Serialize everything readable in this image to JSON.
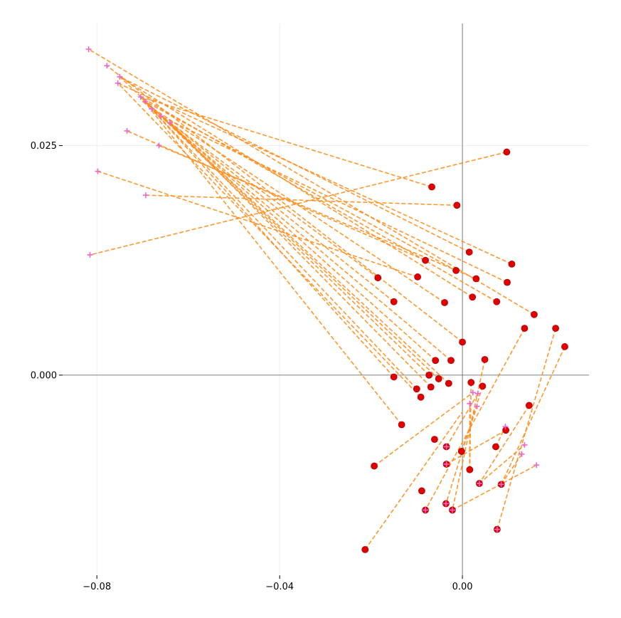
{
  "chart_data": {
    "type": "scatter",
    "title": "",
    "xlabel": "",
    "ylabel": "",
    "xlim": [
      -0.0875,
      0.0277
    ],
    "ylim": [
      -0.0218,
      0.0383
    ],
    "grid": true,
    "xticks": [
      -0.08,
      -0.04,
      0.0
    ],
    "xtick_labels": [
      "−0.08",
      "−0.04",
      "0.00"
    ],
    "yticks": [
      0.0,
      0.025
    ],
    "ytick_labels": [
      "0.000",
      "0.025"
    ],
    "colors": {
      "point": "#e00000",
      "point_edge": "#b00000",
      "target": "#ee66cc",
      "line": "#ff8c1a",
      "grid": "#eeeeee",
      "axis": "#555555"
    },
    "series": [
      {
        "marker": "circle",
        "points": [
          [
            0.0097,
            0.0243
          ],
          [
            -0.0067,
            0.0205
          ],
          [
            -0.0012,
            0.0185
          ],
          [
            0.0015,
            0.0134
          ],
          [
            0.0108,
            0.0121
          ],
          [
            -0.0081,
            0.0125
          ],
          [
            -0.0014,
            0.0114
          ],
          [
            -0.0098,
            0.0107
          ],
          [
            -0.0185,
            0.0106
          ],
          [
            0.003,
            0.0105
          ],
          [
            0.0098,
            0.0101
          ],
          [
            -0.015,
            0.008
          ],
          [
            -0.0039,
            0.0079
          ],
          [
            0.0022,
            0.0085
          ],
          [
            0.0075,
            0.008
          ],
          [
            0.0157,
            0.0066
          ],
          [
            0.0136,
            0.0051
          ],
          [
            0.0204,
            0.0051
          ],
          [
            0.0224,
            0.0031
          ],
          [
            0.0,
            0.0036
          ],
          [
            0.0049,
            0.0017
          ],
          [
            -0.0059,
            0.0016
          ],
          [
            -0.0025,
            0.0016
          ],
          [
            -0.015,
            -0.0002
          ],
          [
            -0.0073,
            0.0
          ],
          [
            -0.0052,
            -0.0004
          ],
          [
            0.0019,
            -0.0008
          ],
          [
            -0.003,
            -0.0009
          ],
          [
            0.0044,
            -0.0012
          ],
          [
            -0.0069,
            -0.0013
          ],
          [
            -0.01,
            -0.0015
          ],
          [
            -0.0091,
            -0.0024
          ],
          [
            0.0146,
            -0.0033
          ],
          [
            -0.0133,
            -0.0054
          ],
          [
            0.0095,
            -0.006
          ],
          [
            -0.0061,
            -0.007
          ],
          [
            -0.0035,
            -0.0078
          ],
          [
            0.0073,
            -0.0078
          ],
          [
            -0.0002,
            -0.0083
          ],
          [
            -0.0035,
            -0.0097
          ],
          [
            -0.0193,
            -0.0099
          ],
          [
            0.0016,
            -0.0103
          ],
          [
            0.0037,
            -0.0118
          ],
          [
            0.0085,
            -0.0119
          ],
          [
            -0.0089,
            -0.0126
          ],
          [
            -0.0036,
            -0.014
          ],
          [
            -0.0081,
            -0.0147
          ],
          [
            -0.0022,
            -0.0147
          ],
          [
            0.0076,
            -0.0168
          ],
          [
            -0.0213,
            -0.019
          ]
        ]
      },
      {
        "marker": "plus",
        "points": [
          [
            -0.0818,
            0.0355
          ],
          [
            -0.0778,
            0.0337
          ],
          [
            -0.075,
            0.0325
          ],
          [
            -0.0754,
            0.0318
          ],
          [
            -0.0704,
            0.0303
          ],
          [
            -0.0694,
            0.0298
          ],
          [
            -0.068,
            0.029
          ],
          [
            -0.066,
            0.0282
          ],
          [
            -0.064,
            0.0275
          ],
          [
            -0.0734,
            0.0266
          ],
          [
            -0.0664,
            0.025
          ],
          [
            -0.0798,
            0.0222
          ],
          [
            -0.0693,
            0.0196
          ],
          [
            -0.0815,
            0.0131
          ],
          [
            0.0023,
            -0.0019
          ],
          [
            0.0034,
            -0.002
          ],
          [
            0.0032,
            -0.0034
          ],
          [
            0.0016,
            -0.0031
          ],
          [
            0.0094,
            -0.0056
          ],
          [
            0.0136,
            -0.0076
          ],
          [
            0.013,
            -0.0086
          ],
          [
            0.0162,
            -0.0098
          ],
          [
            -0.0035,
            -0.0078
          ],
          [
            -0.0035,
            -0.0097
          ],
          [
            0.0037,
            -0.0118
          ],
          [
            0.0085,
            -0.0119
          ],
          [
            -0.0081,
            -0.0147
          ],
          [
            -0.0036,
            -0.014
          ],
          [
            -0.0022,
            -0.0147
          ],
          [
            0.0076,
            -0.0168
          ]
        ]
      }
    ],
    "links": [
      [
        [
          -0.0067,
          0.0205
        ],
        [
          -0.0704,
          0.0303
        ]
      ],
      [
        [
          -0.0012,
          0.0185
        ],
        [
          -0.0693,
          0.0196
        ]
      ],
      [
        [
          0.0015,
          0.0134
        ],
        [
          -0.075,
          0.0325
        ]
      ],
      [
        [
          0.0108,
          0.0121
        ],
        [
          -0.0754,
          0.0318
        ]
      ],
      [
        [
          -0.0081,
          0.0125
        ],
        [
          -0.0734,
          0.0266
        ]
      ],
      [
        [
          -0.0014,
          0.0114
        ],
        [
          -0.0694,
          0.0298
        ]
      ],
      [
        [
          -0.0098,
          0.0107
        ],
        [
          -0.0798,
          0.0222
        ]
      ],
      [
        [
          -0.0185,
          0.0106
        ],
        [
          -0.068,
          0.029
        ]
      ],
      [
        [
          0.003,
          0.0105
        ],
        [
          -0.0664,
          0.025
        ]
      ],
      [
        [
          0.0098,
          0.0101
        ],
        [
          -0.066,
          0.0282
        ]
      ],
      [
        [
          -0.015,
          0.008
        ],
        [
          -0.064,
          0.0275
        ]
      ],
      [
        [
          -0.0039,
          0.0079
        ],
        [
          -0.07,
          0.0298
        ]
      ],
      [
        [
          0.0022,
          0.0085
        ],
        [
          -0.075,
          0.0325
        ]
      ],
      [
        [
          0.0075,
          0.008
        ],
        [
          -0.0704,
          0.0303
        ]
      ],
      [
        [
          0.0157,
          0.0066
        ],
        [
          -0.0818,
          0.0355
        ]
      ],
      [
        [
          0.0,
          0.0036
        ],
        [
          -0.0778,
          0.0337
        ]
      ],
      [
        [
          -0.0059,
          0.0016
        ],
        [
          -0.0694,
          0.0298
        ]
      ],
      [
        [
          -0.0025,
          0.0016
        ],
        [
          -0.068,
          0.029
        ]
      ],
      [
        [
          -0.015,
          -0.0002
        ],
        [
          -0.0704,
          0.0303
        ]
      ],
      [
        [
          -0.0073,
          0.0
        ],
        [
          -0.066,
          0.0282
        ]
      ],
      [
        [
          -0.0052,
          -0.0004
        ],
        [
          -0.075,
          0.0325
        ]
      ],
      [
        [
          -0.003,
          -0.0009
        ],
        [
          -0.0694,
          0.0298
        ]
      ],
      [
        [
          -0.0069,
          -0.0013
        ],
        [
          -0.064,
          0.0275
        ]
      ],
      [
        [
          -0.01,
          -0.0015
        ],
        [
          -0.068,
          0.029
        ]
      ],
      [
        [
          -0.0091,
          -0.0024
        ],
        [
          -0.0754,
          0.0318
        ]
      ],
      [
        [
          -0.0133,
          -0.0054
        ],
        [
          -0.0704,
          0.0303
        ]
      ],
      [
        [
          0.0097,
          0.0243
        ],
        [
          -0.0815,
          0.0131
        ]
      ],
      [
        [
          0.0136,
          0.0051
        ],
        [
          -0.0081,
          -0.0147
        ]
      ],
      [
        [
          0.0204,
          0.0051
        ],
        [
          0.0076,
          -0.0168
        ]
      ],
      [
        [
          0.0224,
          0.0031
        ],
        [
          0.0085,
          -0.0119
        ]
      ],
      [
        [
          0.0049,
          0.0017
        ],
        [
          -0.0022,
          -0.0147
        ]
      ],
      [
        [
          0.0044,
          -0.0012
        ],
        [
          -0.0036,
          -0.014
        ]
      ],
      [
        [
          0.0019,
          -0.0008
        ],
        [
          0.0016,
          -0.0103
        ]
      ],
      [
        [
          0.0146,
          -0.0033
        ],
        [
          0.0037,
          -0.0118
        ]
      ],
      [
        [
          0.0095,
          -0.006
        ],
        [
          -0.0035,
          -0.0097
        ]
      ],
      [
        [
          -0.0193,
          -0.0099
        ],
        [
          0.0023,
          -0.0019
        ]
      ],
      [
        [
          -0.0035,
          -0.0078
        ],
        [
          0.0034,
          -0.002
        ]
      ],
      [
        [
          -0.0002,
          -0.0083
        ],
        [
          0.0032,
          -0.0034
        ]
      ],
      [
        [
          0.0016,
          -0.0103
        ],
        [
          0.0016,
          -0.0031
        ]
      ],
      [
        [
          0.0073,
          -0.0078
        ],
        [
          0.0094,
          -0.0056
        ]
      ],
      [
        [
          0.0037,
          -0.0118
        ],
        [
          0.0136,
          -0.0076
        ]
      ],
      [
        [
          0.0085,
          -0.0119
        ],
        [
          0.013,
          -0.0086
        ]
      ],
      [
        [
          -0.0022,
          -0.0147
        ],
        [
          0.0162,
          -0.0098
        ]
      ],
      [
        [
          -0.0213,
          -0.019
        ],
        [
          0.0,
          -0.004
        ]
      ]
    ]
  }
}
